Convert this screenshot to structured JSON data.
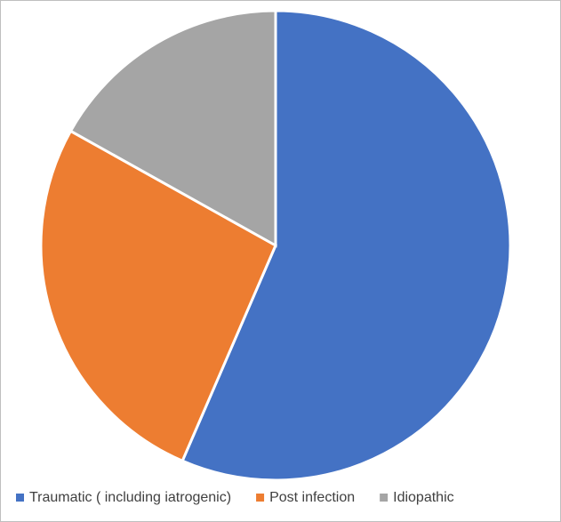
{
  "chart_data": {
    "type": "pie",
    "categories": [
      "Traumatic ( including iatrogenic)",
      "Post infection",
      "Idiopathic"
    ],
    "values": [
      56.5,
      26.6,
      16.9
    ],
    "colors": [
      "#4472c4",
      "#ed7d31",
      "#a5a5a5"
    ],
    "legend": "bottom"
  }
}
